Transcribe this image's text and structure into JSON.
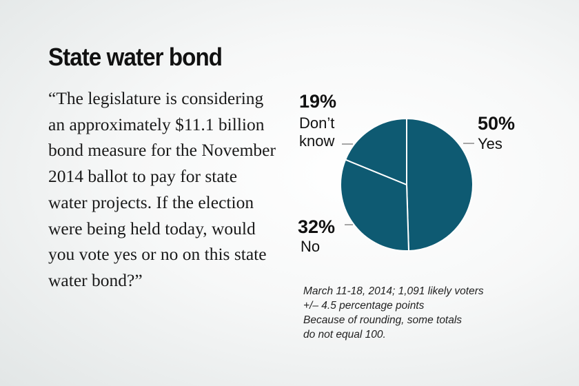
{
  "title": "State water bond",
  "question": "“The legislature is considering an approximately $11.1 billion bond measure for the November 2014 ballot to pay for state water projects. If the election were being held today, would you vote yes or no on this state water bond?”",
  "notes": [
    "March 11-18, 2014; 1,091 likely voters",
    "+/– 4.5 percentage points",
    "Because of rounding, some totals",
    "do not equal 100."
  ],
  "colors": {
    "slice": "#0e5a72",
    "slice_border": "#ffffff",
    "leader": "#777777"
  },
  "chart_data": {
    "type": "pie",
    "title": "",
    "slices": [
      {
        "label": "Yes",
        "value": 50,
        "value_label": "50%",
        "name_lines": [
          "Yes"
        ]
      },
      {
        "label": "No",
        "value": 32,
        "value_label": "32%",
        "name_lines": [
          "No"
        ]
      },
      {
        "label": "Don’t know",
        "value": 19,
        "value_label": "19%",
        "name_lines": [
          "Don’t",
          "know"
        ]
      }
    ]
  }
}
